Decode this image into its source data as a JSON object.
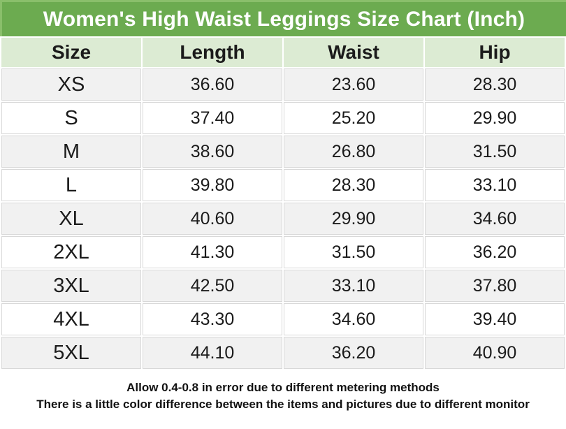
{
  "title": "Women's High Waist Leggings Size Chart (Inch)",
  "table": {
    "headers": [
      "Size",
      "Length",
      "Waist",
      "Hip"
    ],
    "rows": [
      {
        "size": "XS",
        "length": "36.60",
        "waist": "23.60",
        "hip": "28.30"
      },
      {
        "size": "S",
        "length": "37.40",
        "waist": "25.20",
        "hip": "29.90"
      },
      {
        "size": "M",
        "length": "38.60",
        "waist": "26.80",
        "hip": "31.50"
      },
      {
        "size": "L",
        "length": "39.80",
        "waist": "28.30",
        "hip": "33.10"
      },
      {
        "size": "XL",
        "length": "40.60",
        "waist": "29.90",
        "hip": "34.60"
      },
      {
        "size": "2XL",
        "length": "41.30",
        "waist": "31.50",
        "hip": "36.20"
      },
      {
        "size": "3XL",
        "length": "42.50",
        "waist": "33.10",
        "hip": "37.80"
      },
      {
        "size": "4XL",
        "length": "43.30",
        "waist": "34.60",
        "hip": "39.40"
      },
      {
        "size": "5XL",
        "length": "44.10",
        "waist": "36.20",
        "hip": "40.90"
      }
    ]
  },
  "footer": {
    "line1": "Allow 0.4-0.8 in error due to different metering methods",
    "line2": "There is a little color difference between the items and pictures due to different monitor"
  },
  "colors": {
    "title_bar": "#6cab50",
    "title_bar_edge": "#8abf6b",
    "title_text": "#ffffff",
    "header_bg": "#dcebd3",
    "row_alt_bg": "#f1f1f1",
    "row_bg": "#ffffff",
    "grid_line": "#d8d8d8",
    "text": "#1b1b1b"
  },
  "chart_data": {
    "type": "table",
    "title": "Women's High Waist Leggings Size Chart (Inch)",
    "unit": "inch",
    "columns": [
      "Size",
      "Length",
      "Waist",
      "Hip"
    ],
    "rows": [
      [
        "XS",
        36.6,
        23.6,
        28.3
      ],
      [
        "S",
        37.4,
        25.2,
        29.9
      ],
      [
        "M",
        38.6,
        26.8,
        31.5
      ],
      [
        "L",
        39.8,
        28.3,
        33.1
      ],
      [
        "XL",
        40.6,
        29.9,
        34.6
      ],
      [
        "2XL",
        41.3,
        31.5,
        36.2
      ],
      [
        "3XL",
        42.5,
        33.1,
        37.8
      ],
      [
        "4XL",
        43.3,
        34.6,
        39.4
      ],
      [
        "5XL",
        44.1,
        36.2,
        40.9
      ]
    ],
    "notes": [
      "Allow 0.4-0.8 in error due to different metering methods",
      "There is a little color difference between the items and pictures due to different monitor"
    ],
    "layout_hints": {
      "header_fill": "light-green",
      "title_fill": "green",
      "row_striping": "odd-rows-gray",
      "grid": true
    }
  }
}
